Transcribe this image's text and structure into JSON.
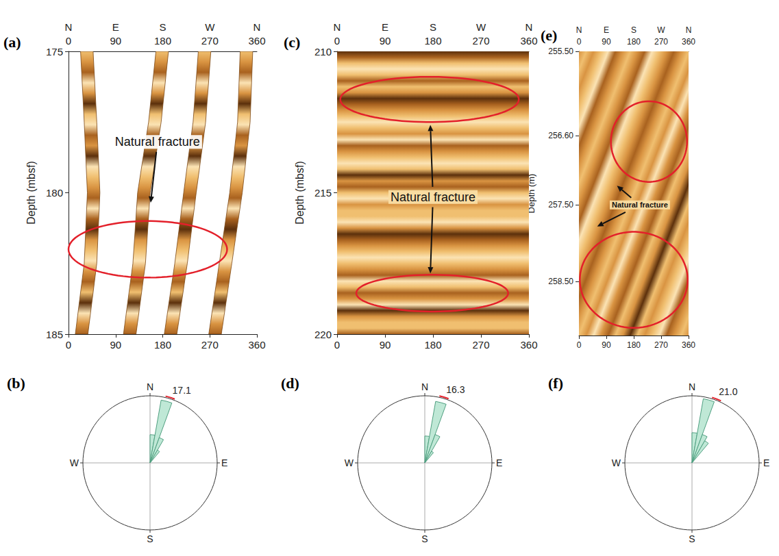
{
  "chart_data": [
    {
      "type": "image_log",
      "panel": "(a)",
      "ylabel": "Depth (mbsf)",
      "xlim": [
        0,
        360
      ],
      "xticks": [
        0,
        90,
        180,
        270,
        360
      ],
      "top_ticks": [
        {
          "value": 0,
          "label": "N"
        },
        {
          "value": 90,
          "label": "E"
        },
        {
          "value": 180,
          "label": "S"
        },
        {
          "value": 270,
          "label": "W"
        },
        {
          "value": 360,
          "label": "N"
        }
      ],
      "ylim": [
        175,
        185
      ],
      "yticks": [
        175,
        180,
        185
      ],
      "pads": [
        {
          "depth": [
            175,
            177.5,
            180,
            182.5,
            185
          ],
          "from": [
            23,
            30,
            36,
            30,
            13
          ],
          "to": [
            47,
            54,
            60,
            54,
            37
          ]
        },
        {
          "depth": [
            175,
            177.5,
            180,
            182.5,
            185
          ],
          "from": [
            167,
            153,
            132,
            123,
            105
          ],
          "to": [
            191,
            177,
            156,
            147,
            129
          ]
        },
        {
          "depth": [
            175,
            177.5,
            180,
            182.5,
            185
          ],
          "from": [
            248,
            238,
            220,
            203,
            183
          ],
          "to": [
            272,
            262,
            244,
            227,
            207
          ]
        },
        {
          "depth": [
            175,
            177.5,
            180,
            182.5,
            185
          ],
          "from": [
            328,
            323,
            308,
            288,
            268
          ],
          "to": [
            352,
            347,
            332,
            312,
            292
          ]
        }
      ],
      "ellipses": [
        {
          "x": [
            0,
            303
          ],
          "y": [
            181.0,
            183.0
          ]
        }
      ],
      "annotations": [
        {
          "text": "Natural fracture",
          "x": 170,
          "y": 178.2,
          "arrows": [
            {
              "x": 157,
              "y": 180.35
            }
          ]
        }
      ]
    },
    {
      "type": "rose",
      "panel": "(b)",
      "bins": [
        0,
        10,
        20,
        30,
        40
      ],
      "values": [
        0.42,
        0.95,
        0.4,
        0.22
      ],
      "rlim": [
        0,
        1
      ],
      "angle_ticks": [
        {
          "value": 0,
          "label": "N"
        },
        {
          "value": 90,
          "label": "E"
        },
        {
          "value": 180,
          "label": "S"
        },
        {
          "value": 270,
          "label": "W"
        }
      ],
      "mean": {
        "value": 17.1,
        "label": "17.1"
      },
      "color": "#bfe8d6"
    },
    {
      "type": "image_log",
      "panel": "(c)",
      "ylabel": "Depth (mbsf)",
      "xlim": [
        0,
        360
      ],
      "xticks": [
        0,
        90,
        180,
        270,
        360
      ],
      "top_ticks": [
        {
          "value": 0,
          "label": "N"
        },
        {
          "value": 90,
          "label": "E"
        },
        {
          "value": 180,
          "label": "S"
        },
        {
          "value": 270,
          "label": "W"
        },
        {
          "value": 360,
          "label": "N"
        }
      ],
      "ylim": [
        210,
        220
      ],
      "yticks": [
        210,
        215,
        220
      ],
      "ellipses": [
        {
          "x": [
            6,
            341
          ],
          "y": [
            210.9,
            212.5
          ]
        },
        {
          "x": [
            36,
            321
          ],
          "y": [
            217.9,
            219.2
          ]
        }
      ],
      "annotations": [
        {
          "text": "Natural fracture",
          "x": 180,
          "y": 215.15,
          "arrows": [
            {
              "x": 175,
              "y": 212.6
            },
            {
              "x": 175,
              "y": 217.85
            }
          ]
        }
      ]
    },
    {
      "type": "rose",
      "panel": "(d)",
      "bins": [
        0,
        10,
        20,
        30,
        40
      ],
      "values": [
        0.4,
        0.93,
        0.45,
        0.2
      ],
      "rlim": [
        0,
        1
      ],
      "angle_ticks": [
        {
          "value": 0,
          "label": "N"
        },
        {
          "value": 90,
          "label": "E"
        },
        {
          "value": 180,
          "label": "S"
        },
        {
          "value": 270,
          "label": "W"
        }
      ],
      "mean": {
        "value": 16.3,
        "label": "16.3"
      },
      "color": "#bfe8d6"
    },
    {
      "type": "image_log",
      "panel": "(e)",
      "ylabel": "Depth (m)",
      "xlim": [
        0,
        360
      ],
      "xticks": [
        0,
        90,
        180,
        270,
        360
      ],
      "top_ticks": [
        {
          "value": 0,
          "label": "N"
        },
        {
          "value": 90,
          "label": "E"
        },
        {
          "value": 180,
          "label": "S"
        },
        {
          "value": 270,
          "label": "W"
        },
        {
          "value": 360,
          "label": "N"
        }
      ],
      "ylim": [
        255.5,
        259.2
      ],
      "yticks": [
        {
          "value": 255.5,
          "label": "255.50"
        },
        {
          "value": 256.6,
          "label": "256.60"
        },
        {
          "value": 257.5,
          "label": "257.50"
        },
        {
          "value": 258.5,
          "label": "258.50"
        }
      ],
      "ellipses": [
        {
          "x": [
            105,
            355
          ],
          "y": [
            256.15,
            257.2
          ]
        },
        {
          "x": [
            3,
            357
          ],
          "y": [
            257.85,
            259.1
          ]
        }
      ],
      "annotations": [
        {
          "text": "Natural fracture",
          "x": 200,
          "y": 257.5,
          "arrows": [
            {
              "x": 125,
              "y": 257.25
            },
            {
              "x": 60,
              "y": 257.78
            }
          ]
        }
      ]
    },
    {
      "type": "rose",
      "panel": "(f)",
      "bins": [
        0,
        10,
        20,
        30,
        40
      ],
      "values": [
        0.45,
        0.97,
        0.45,
        0.38
      ],
      "rlim": [
        0,
        1
      ],
      "angle_ticks": [
        {
          "value": 0,
          "label": "N"
        },
        {
          "value": 90,
          "label": "E"
        },
        {
          "value": 180,
          "label": "S"
        },
        {
          "value": 270,
          "label": "W"
        }
      ],
      "mean": {
        "value": 21.0,
        "label": "21.0"
      },
      "color": "#bfe8d6"
    }
  ]
}
